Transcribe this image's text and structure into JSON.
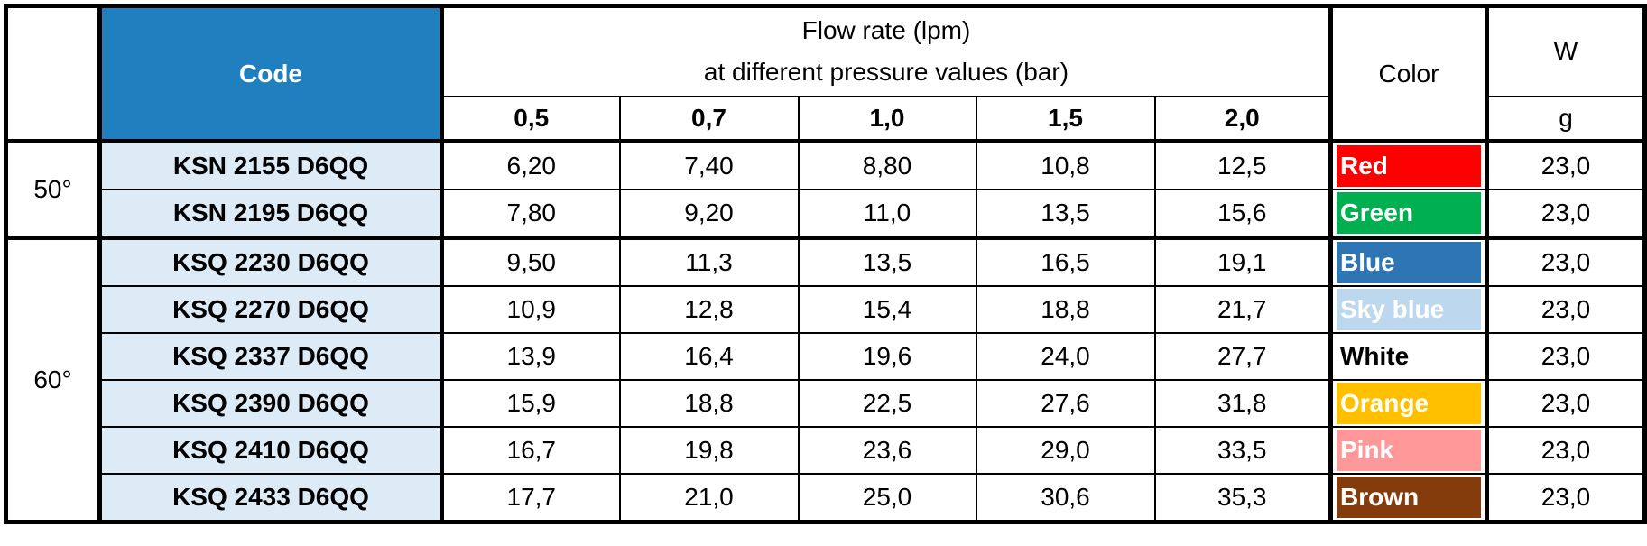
{
  "table": {
    "header": {
      "code": "Code",
      "flow_title": [
        "Flow rate (lpm)",
        "at different pressure values (bar)"
      ],
      "pressures": [
        "0,5",
        "0,7",
        "1,0",
        "1,5",
        "2,0"
      ],
      "color": "Color",
      "weight": "W",
      "weight_unit": "g"
    },
    "groups": [
      {
        "angle": "50°",
        "rows": [
          {
            "code": "KSN 2155 D6QQ",
            "flows": [
              "6,20",
              "7,40",
              "8,80",
              "10,8",
              "12,5"
            ],
            "color": "Red",
            "fill": "#ff0000",
            "text_color": "#ffffff",
            "weight": "23,0"
          },
          {
            "code": "KSN 2195 D6QQ",
            "flows": [
              "7,80",
              "9,20",
              "11,0",
              "13,5",
              "15,6"
            ],
            "color": "Green",
            "fill": "#00b050",
            "text_color": "#ffffff",
            "weight": "23,0"
          }
        ]
      },
      {
        "angle": "60°",
        "rows": [
          {
            "code": "KSQ 2230 D6QQ",
            "flows": [
              "9,50",
              "11,3",
              "13,5",
              "16,5",
              "19,1"
            ],
            "color": "Blue",
            "fill": "#2e75b6",
            "text_color": "#ffffff",
            "weight": "23,0"
          },
          {
            "code": "KSQ 2270 D6QQ",
            "flows": [
              "10,9",
              "12,8",
              "15,4",
              "18,8",
              "21,7"
            ],
            "color": "Sky blue",
            "fill": "#bdd7ee",
            "text_color": "#ffffff",
            "weight": "23,0"
          },
          {
            "code": "KSQ 2337 D6QQ",
            "flows": [
              "13,9",
              "16,4",
              "19,6",
              "24,0",
              "27,7"
            ],
            "color": "White",
            "fill": "#ffffff",
            "text_color": "#000000",
            "weight": "23,0"
          },
          {
            "code": "KSQ 2390 D6QQ",
            "flows": [
              "15,9",
              "18,8",
              "22,5",
              "27,6",
              "31,8"
            ],
            "color": "Orange",
            "fill": "#ffc000",
            "text_color": "#ffffff",
            "weight": "23,0"
          },
          {
            "code": "KSQ 2410 D6QQ",
            "flows": [
              "16,7",
              "19,8",
              "23,6",
              "29,0",
              "33,5"
            ],
            "color": "Pink",
            "fill": "#ff9999",
            "text_color": "#ffffff",
            "weight": "23,0"
          },
          {
            "code": "KSQ 2433 D6QQ",
            "flows": [
              "17,7",
              "21,0",
              "25,0",
              "30,6",
              "35,3"
            ],
            "color": "Brown",
            "fill": "#843c0c",
            "text_color": "#ffffff",
            "weight": "23,0"
          }
        ]
      }
    ]
  }
}
